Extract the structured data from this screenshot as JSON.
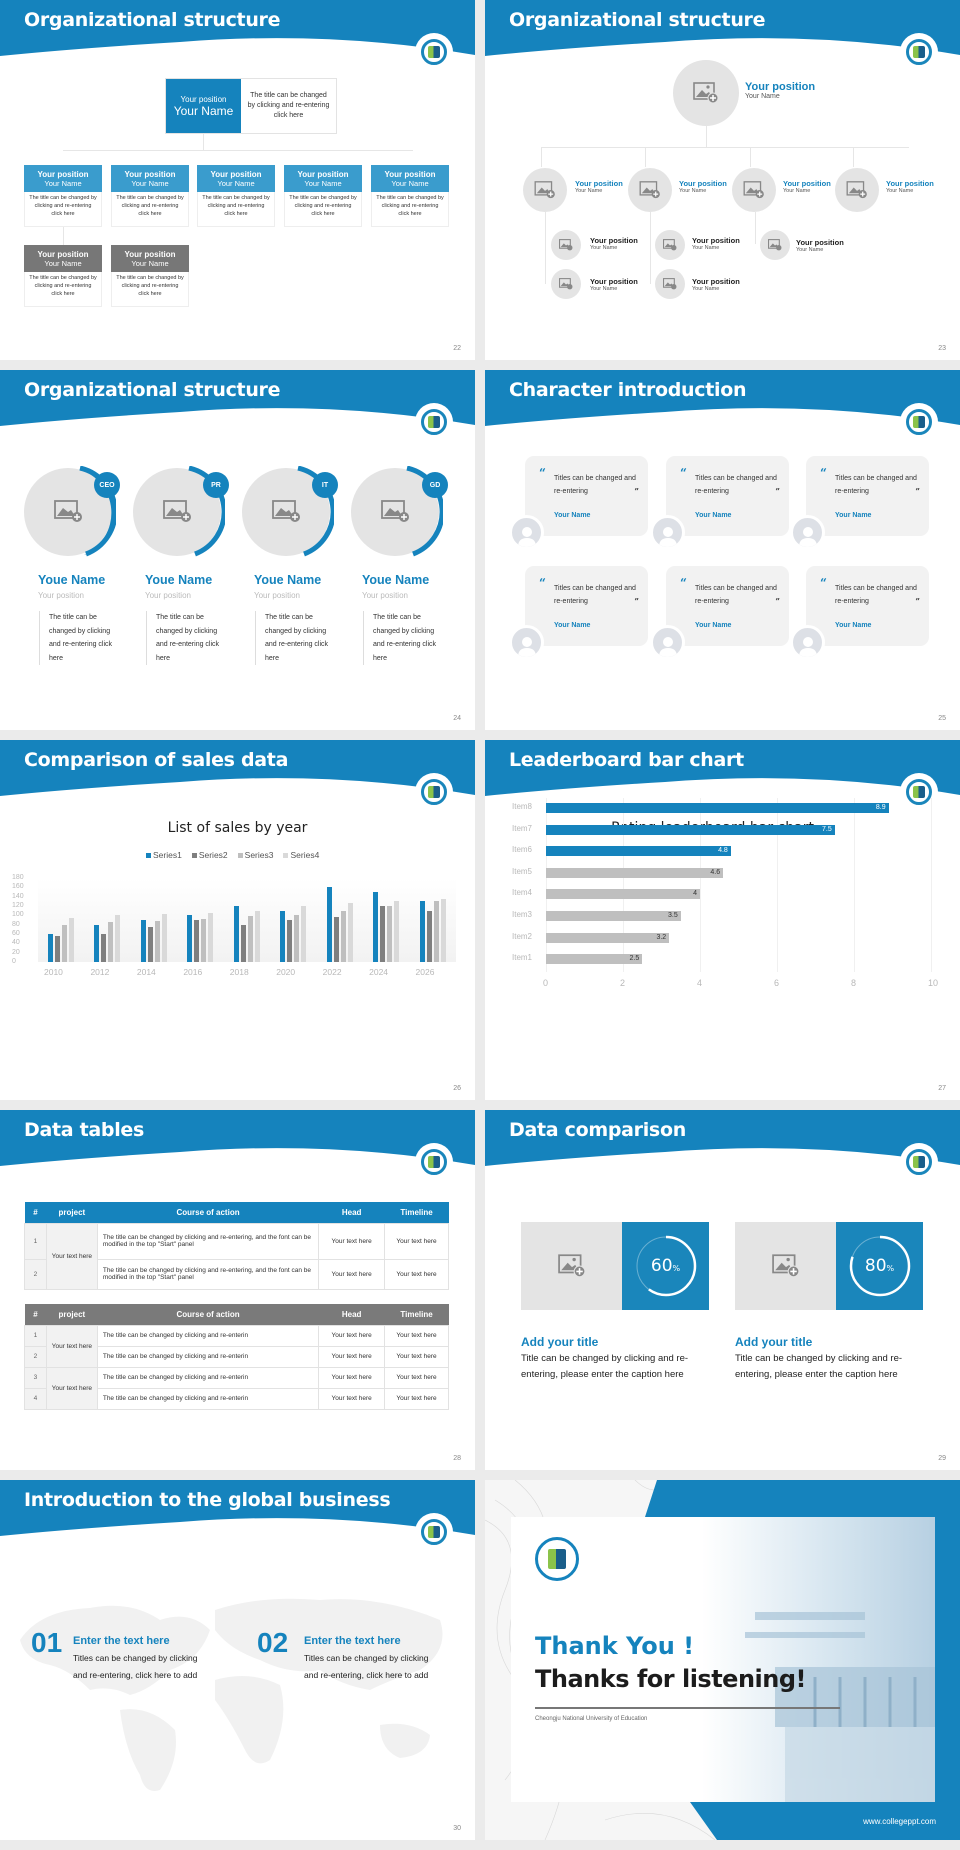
{
  "theme": {
    "accent": "#1583bd",
    "header_blue": "#1583bd",
    "gray_dark": "#777777",
    "gray_light": "#c0c0c0",
    "background": "#ebebeb"
  },
  "slides": [
    {
      "number": "22",
      "title": "Organizational structure",
      "top_node": {
        "position": "Your position",
        "name": "Your Name",
        "description": "The title can be changed by clicking and re-entering click here"
      },
      "blue_cards": [
        {
          "position": "Your position",
          "name": "Your Name",
          "description": "The title can be changed by clicking and re-entering click here"
        },
        {
          "position": "Your position",
          "name": "Your Name",
          "description": "The title can be changed by clicking and re-entering click here"
        },
        {
          "position": "Your position",
          "name": "Your Name",
          "description": "The title can be changed by clicking and re-entering click here"
        },
        {
          "position": "Your position",
          "name": "Your Name",
          "description": "The title can be changed by clicking and re-entering click here"
        },
        {
          "position": "Your position",
          "name": "Your Name",
          "description": "The title can be changed by clicking and re-entering click here"
        }
      ],
      "gray_cards": [
        {
          "position": "Your position",
          "name": "Your Name",
          "description": "The title can be changed by clicking and re-entering click here"
        },
        {
          "position": "Your position",
          "name": "Your Name",
          "description": "The title can be changed by clicking and re-entering click here"
        }
      ]
    },
    {
      "number": "23",
      "title": "Organizational structure",
      "top_node": {
        "position": "Your position",
        "name": "Your Name"
      },
      "level2": [
        {
          "position": "Your position",
          "name": "Your Name"
        },
        {
          "position": "Your position",
          "name": "Your Name"
        },
        {
          "position": "Your position",
          "name": "Your Name"
        },
        {
          "position": "Your position",
          "name": "Your Name"
        }
      ],
      "level3": [
        {
          "position": "Your position",
          "name": "Your Name"
        },
        {
          "position": "Your position",
          "name": "Your Name"
        },
        {
          "position": "Your position",
          "name": "Your Name"
        },
        {
          "position": "Your position",
          "name": "Your Name"
        },
        {
          "position": "Your position",
          "name": "Your Name"
        }
      ]
    },
    {
      "number": "24",
      "title": "Organizational structure",
      "members": [
        {
          "badge": "CEO",
          "name": "Youe Name",
          "position": "Your position",
          "description": "The title can be changed by clicking and re-entering click here"
        },
        {
          "badge": "PR",
          "name": "Youe Name",
          "position": "Your position",
          "description": "The title can be changed by clicking and re-entering click here"
        },
        {
          "badge": "IT",
          "name": "Youe Name",
          "position": "Your position",
          "description": "The title can be changed by clicking and re-entering click here"
        },
        {
          "badge": "GD",
          "name": "Youe Name",
          "position": "Your position",
          "description": "The title can be changed by clicking and re-entering click here"
        }
      ]
    },
    {
      "number": "25",
      "title": "Character introduction",
      "quotes": [
        {
          "text": "Titles can be changed and re-entering",
          "name": "Your Name"
        },
        {
          "text": "Titles can be changed and re-entering",
          "name": "Your Name"
        },
        {
          "text": "Titles can be changed and re-entering",
          "name": "Your Name"
        },
        {
          "text": "Titles can be changed and re-entering",
          "name": "Your Name"
        },
        {
          "text": "Titles can be changed and re-entering",
          "name": "Your Name"
        },
        {
          "text": "Titles can be changed and re-entering",
          "name": "Your Name"
        }
      ],
      "open_quote": "“",
      "close_quote": "”"
    },
    {
      "number": "26",
      "title": "Comparison of sales data"
    },
    {
      "number": "27",
      "title": "Leaderboard bar chart"
    },
    {
      "number": "28",
      "title": "Data tables",
      "table1": {
        "headers": [
          "#",
          "project",
          "Course of action",
          "Head",
          "Timeline"
        ],
        "project_cell": "Your text here",
        "rows": [
          {
            "num": "1",
            "course": "The title can be changed by clicking and re-entering, and the font can be modified in the top \"Start\" panel",
            "head": "Your text here",
            "timeline": "Your text here"
          },
          {
            "num": "2",
            "course": "The title can be changed by clicking and re-entering, and the font can be modified in the top \"Start\" panel",
            "head": "Your text here",
            "timeline": "Your text here"
          }
        ]
      },
      "table2": {
        "headers": [
          "#",
          "project",
          "Course of action",
          "Head",
          "Timeline"
        ],
        "project_cells": [
          "Your text here",
          "Your text here"
        ],
        "rows": [
          {
            "num": "1",
            "course": "The title can be changed by clicking and re-enterin",
            "head": "Your text here",
            "timeline": "Your text here"
          },
          {
            "num": "2",
            "course": "The title can be changed by clicking and re-enterin",
            "head": "Your text here",
            "timeline": "Your text here"
          },
          {
            "num": "3",
            "course": "The title can be changed by clicking and re-enterin",
            "head": "Your text here",
            "timeline": "Your text here"
          },
          {
            "num": "4",
            "course": "The title can be changed by clicking and re-enterin",
            "head": "Your text here",
            "timeline": "Your text here"
          }
        ]
      }
    },
    {
      "number": "29",
      "title": "Data comparison",
      "items": [
        {
          "percent": "60",
          "percent_sign": "%",
          "value": 60,
          "title": "Add your title",
          "description": "Title can be changed by clicking and re-entering, please enter the caption here"
        },
        {
          "percent": "80",
          "percent_sign": "%",
          "value": 80,
          "title": "Add your title",
          "description": "Title can be changed by clicking and re-entering, please enter the caption here"
        }
      ]
    },
    {
      "number": "30",
      "title": "Introduction to the global business",
      "items": [
        {
          "num": "01",
          "title": "Enter the text here",
          "description": "Titles can be changed by clicking and re-entering, click here to add"
        },
        {
          "num": "02",
          "title": "Enter the text here",
          "description": "Titles can be changed by clicking and re-entering, click here to add"
        }
      ]
    },
    {
      "title_line1": "Thank You !",
      "title_line2": "Thanks for listening!",
      "university": "Cheongju National University of Education",
      "website": "www.collegeppt.com"
    }
  ],
  "chart_data": [
    {
      "type": "bar",
      "title": "List of sales by year",
      "categories": [
        "2010",
        "2012",
        "2014",
        "2016",
        "2018",
        "2020",
        "2022",
        "2024",
        "2026"
      ],
      "series": [
        {
          "name": "Series1",
          "color": "#1583bd",
          "values": [
            60,
            80,
            90,
            100,
            120,
            110,
            160,
            150,
            130
          ]
        },
        {
          "name": "Series2",
          "color": "#7f7f7f",
          "values": [
            55,
            60,
            75,
            90,
            80,
            90,
            96,
            120,
            110
          ]
        },
        {
          "name": "Series3",
          "color": "#bfbfbf",
          "values": [
            80,
            86,
            88,
            92,
            98,
            100,
            110,
            120,
            130
          ]
        },
        {
          "name": "Series4",
          "color": "#d9d9d9",
          "values": [
            95,
            100,
            102,
            105,
            110,
            120,
            126,
            130,
            135
          ]
        }
      ],
      "yticks": [
        "180",
        "160",
        "140",
        "120",
        "100",
        "80",
        "60",
        "40",
        "20",
        "0"
      ],
      "ylim": [
        0,
        180
      ],
      "xlabel": "",
      "ylabel": "",
      "legend_position": "top",
      "grid": false
    },
    {
      "type": "bar",
      "orientation": "horizontal",
      "title": "Rating leaderboard bar chart",
      "categories": [
        "Item8",
        "Item7",
        "Item6",
        "Item5",
        "Item4",
        "Item3",
        "Item2",
        "Item1"
      ],
      "values": [
        8.9,
        7.5,
        4.8,
        4.6,
        4,
        3.5,
        3.2,
        2.5
      ],
      "labels": [
        "8.9",
        "7.5",
        "4.8",
        "4.6",
        "4",
        "3.5",
        "3.2",
        "2.5"
      ],
      "highlight_colors": [
        "#1583bd",
        "#1583bd",
        "#1583bd",
        "#bfbfbf",
        "#bfbfbf",
        "#bfbfbf",
        "#bfbfbf",
        "#bfbfbf"
      ],
      "xticks": [
        "0",
        "2",
        "4",
        "6",
        "8",
        "10"
      ],
      "xlim": [
        0,
        10
      ],
      "grid": true
    }
  ]
}
